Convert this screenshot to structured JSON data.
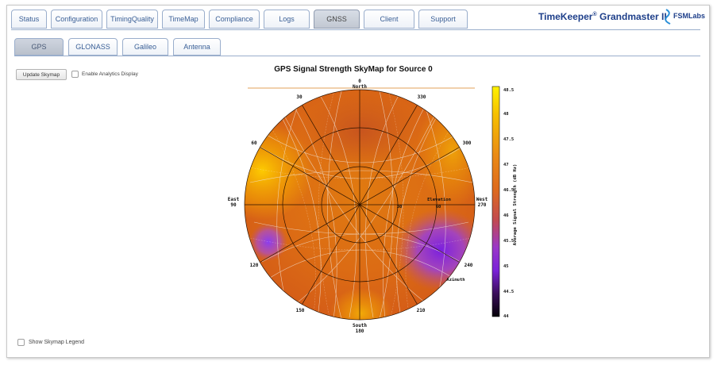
{
  "header": {
    "main_tabs": [
      {
        "label": "Status",
        "active": false
      },
      {
        "label": "Configuration",
        "active": false
      },
      {
        "label": "TimingQuality",
        "active": false
      },
      {
        "label": "TimeMap",
        "active": false
      },
      {
        "label": "Compliance",
        "active": false
      },
      {
        "label": "Logs",
        "active": false
      },
      {
        "label": "GNSS",
        "active": true
      },
      {
        "label": "Client",
        "active": false
      },
      {
        "label": "Support",
        "active": false
      }
    ],
    "brand": {
      "name": "TimeKeeper",
      "reg": "®",
      "product": "Grandmaster II",
      "logo_text": "FSMLabs"
    }
  },
  "sub_tabs": [
    {
      "label": "GPS",
      "active": true
    },
    {
      "label": "GLONASS",
      "active": false
    },
    {
      "label": "Galileo",
      "active": false
    },
    {
      "label": "Antenna",
      "active": false
    }
  ],
  "controls": {
    "update_button": "Update Skymap",
    "analytics_label": "Enable Analytics Display",
    "analytics_checked": false,
    "legend_label": "Show Skymap Legend",
    "legend_checked": false
  },
  "skymap": {
    "title": "GPS Signal Strength SkyMap for Source 0",
    "compass": {
      "north": "North",
      "north_deg": "0",
      "east": "East",
      "east_deg": "90",
      "south": "South",
      "south_deg": "180",
      "west": "West",
      "west_deg": "270"
    },
    "azimuth_ticks": [
      "30",
      "330",
      "60",
      "300",
      "120",
      "240",
      "150",
      "210"
    ],
    "elevation_label": "Elevation",
    "elevation_ticks": [
      "30",
      "60"
    ],
    "azimuth_label": "Azimuth",
    "colorbar": {
      "label": "Average Signal Strength (dB Hz)",
      "ticks": [
        "48.5",
        "48",
        "47.5",
        "47",
        "46.5",
        "46",
        "45.5",
        "45",
        "44.5",
        "44"
      ],
      "colors": [
        "#fff200",
        "#f6b400",
        "#ea8a15",
        "#dd6a1e",
        "#cc4f2e",
        "#b6407a",
        "#9a37c8",
        "#6b22a8",
        "#3a0f5a",
        "#050008"
      ]
    }
  }
}
